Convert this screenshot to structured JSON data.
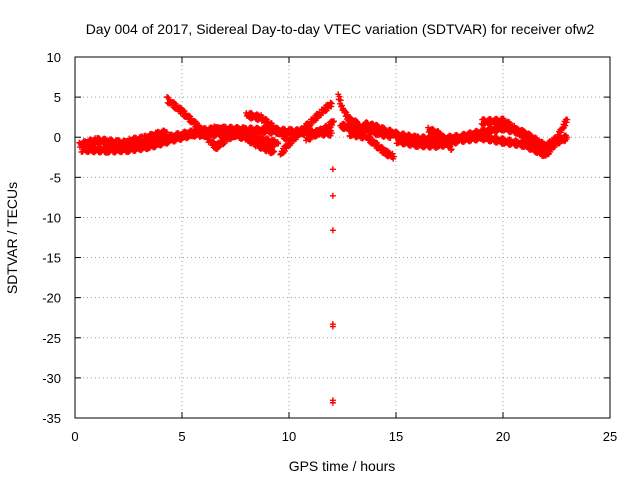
{
  "chart_data": {
    "type": "scatter",
    "title": "Day 004 of 2017, Sidereal Day-to-day VTEC variation (SDTVAR) for receiver ofw2",
    "xlabel": "GPS time / hours",
    "ylabel": "SDTVAR / TECUs",
    "xlim": [
      0,
      25
    ],
    "ylim": [
      -35,
      10
    ],
    "x_ticks": [
      0,
      5,
      10,
      15,
      20,
      25
    ],
    "y_ticks": [
      10,
      5,
      0,
      -5,
      -10,
      -15,
      -20,
      -25,
      -30,
      -35
    ],
    "grid": true,
    "marker": "+",
    "color": "#ff0000",
    "series": [
      {
        "name": "SDTVAR",
        "tracks": [
          [
            [
              0.2,
              -1.0
            ],
            [
              1.0,
              -0.4
            ],
            [
              2.0,
              -0.7
            ],
            [
              3.0,
              -0.9
            ],
            [
              4.0,
              -0.3
            ],
            [
              5.0,
              0.3
            ],
            [
              6.0,
              0.8
            ],
            [
              7.0,
              1.0
            ],
            [
              8.0,
              0.9
            ],
            [
              9.0,
              0.8
            ],
            [
              10.0,
              0.7
            ],
            [
              11.0,
              0.6
            ],
            [
              12.0,
              0.5
            ]
          ],
          [
            [
              0.3,
              -1.5
            ],
            [
              1.5,
              -1.6
            ],
            [
              2.5,
              -1.5
            ],
            [
              3.5,
              -1.1
            ],
            [
              4.5,
              -0.3
            ],
            [
              5.5,
              0.4
            ],
            [
              6.5,
              0.5
            ],
            [
              7.5,
              0.3
            ],
            [
              8.5,
              -0.2
            ],
            [
              9.5,
              -0.8
            ]
          ],
          [
            [
              2.5,
              -0.5
            ],
            [
              3.2,
              -0.2
            ],
            [
              3.8,
              0.3
            ],
            [
              4.3,
              0.6
            ]
          ],
          [
            [
              4.3,
              4.7
            ],
            [
              5.0,
              3.2
            ],
            [
              5.8,
              1.2
            ],
            [
              6.3,
              -0.5
            ],
            [
              6.6,
              -1.2
            ],
            [
              7.2,
              0.0
            ],
            [
              7.8,
              1.0
            ]
          ],
          [
            [
              5.8,
              0.2
            ],
            [
              6.5,
              1.0
            ],
            [
              7.3,
              0.6
            ],
            [
              8.0,
              -0.1
            ],
            [
              8.5,
              -0.9
            ],
            [
              9.0,
              -1.5
            ],
            [
              9.3,
              -1.8
            ]
          ],
          [
            [
              8.0,
              2.8
            ],
            [
              8.7,
              2.4
            ],
            [
              9.2,
              1.4
            ],
            [
              9.6,
              0.5
            ],
            [
              10.0,
              -0.3
            ]
          ],
          [
            [
              9.6,
              -2.1
            ],
            [
              10.0,
              -0.8
            ],
            [
              10.5,
              0.6
            ],
            [
              11.0,
              1.8
            ],
            [
              11.5,
              3.1
            ],
            [
              12.0,
              4.2
            ]
          ],
          [
            [
              10.8,
              -0.2
            ],
            [
              11.3,
              0.5
            ],
            [
              11.8,
              1.2
            ],
            [
              12.1,
              2.0
            ]
          ],
          [
            [
              12.3,
              5.2
            ],
            [
              12.5,
              3.6
            ],
            [
              12.8,
              2.2
            ],
            [
              13.3,
              1.5
            ]
          ],
          [
            [
              12.4,
              1.4
            ],
            [
              13.0,
              1.2
            ],
            [
              13.6,
              1.0
            ],
            [
              14.2,
              0.5
            ],
            [
              14.8,
              0.2
            ]
          ],
          [
            [
              12.8,
              0.5
            ],
            [
              13.6,
              0.1
            ],
            [
              14.0,
              -0.8
            ],
            [
              14.5,
              -1.9
            ],
            [
              14.9,
              -2.4
            ]
          ],
          [
            [
              13.5,
              1.6
            ],
            [
              14.0,
              1.3
            ],
            [
              14.6,
              0.7
            ],
            [
              15.2,
              0.2
            ],
            [
              16.0,
              -0.2
            ],
            [
              17.0,
              -0.3
            ],
            [
              18.0,
              0.0
            ],
            [
              19.0,
              0.6
            ],
            [
              20.0,
              1.2
            ],
            [
              21.0,
              0.5
            ],
            [
              22.0,
              -1.2
            ],
            [
              22.5,
              -0.2
            ],
            [
              23.0,
              2.2
            ]
          ],
          [
            [
              15.0,
              -0.4
            ],
            [
              16.0,
              -0.9
            ],
            [
              17.0,
              -1.0
            ],
            [
              18.0,
              -0.3
            ],
            [
              19.0,
              0.0
            ],
            [
              20.0,
              -0.5
            ],
            [
              21.0,
              -0.9
            ],
            [
              22.0,
              -2.2
            ],
            [
              22.5,
              -0.6
            ],
            [
              23.0,
              0.0
            ]
          ],
          [
            [
              16.5,
              0.9
            ],
            [
              17.0,
              0.4
            ],
            [
              17.3,
              -0.4
            ],
            [
              17.6,
              -1.5
            ]
          ],
          [
            [
              19.0,
              1.9
            ],
            [
              20.0,
              2.0
            ],
            [
              20.5,
              1.2
            ],
            [
              21.0,
              0.0
            ],
            [
              21.5,
              -0.6
            ],
            [
              22.0,
              -1.3
            ]
          ]
        ],
        "outliers": [
          [
            12.05,
            -4.0
          ],
          [
            12.05,
            -7.3
          ],
          [
            12.05,
            -11.6
          ],
          [
            12.05,
            -23.3
          ],
          [
            12.05,
            -23.6
          ],
          [
            12.05,
            -32.8
          ],
          [
            12.05,
            -33.1
          ]
        ]
      }
    ]
  }
}
